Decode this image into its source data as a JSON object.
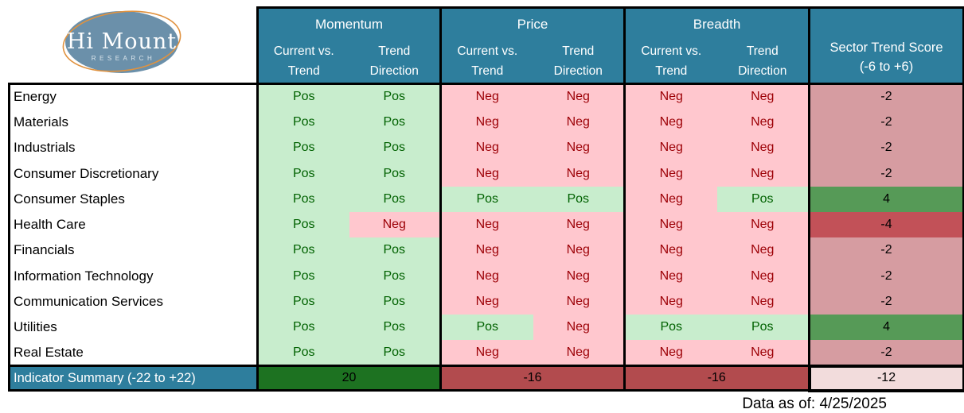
{
  "logo": {
    "title": "Hi Mount",
    "subtitle": "RESEARCH"
  },
  "header": {
    "groups": [
      {
        "label": "Momentum",
        "sub": [
          "Current vs. Trend",
          "Trend Direction"
        ]
      },
      {
        "label": "Price",
        "sub": [
          "Current vs. Trend",
          "Trend Direction"
        ]
      },
      {
        "label": "Breadth",
        "sub": [
          "Current vs. Trend",
          "Trend Direction"
        ]
      }
    ],
    "score": {
      "line1": "Sector Trend Score",
      "line2": "(-6 to +6)"
    }
  },
  "chart_data": {
    "type": "table",
    "title": "Sector Trend Score (-6 to +6)",
    "columns": [
      "Sector",
      "Momentum Current vs. Trend",
      "Momentum Trend Direction",
      "Price Current vs. Trend",
      "Price Trend Direction",
      "Breadth Current vs. Trend",
      "Breadth Trend Direction",
      "Sector Trend Score (-6 to +6)"
    ],
    "rows": [
      {
        "sector": "Energy",
        "momentum": [
          "Pos",
          "Pos"
        ],
        "price": [
          "Neg",
          "Neg"
        ],
        "breadth": [
          "Neg",
          "Neg"
        ],
        "score": -2
      },
      {
        "sector": "Materials",
        "momentum": [
          "Pos",
          "Pos"
        ],
        "price": [
          "Neg",
          "Neg"
        ],
        "breadth": [
          "Neg",
          "Neg"
        ],
        "score": -2
      },
      {
        "sector": "Industrials",
        "momentum": [
          "Pos",
          "Pos"
        ],
        "price": [
          "Neg",
          "Neg"
        ],
        "breadth": [
          "Neg",
          "Neg"
        ],
        "score": -2
      },
      {
        "sector": "Consumer Discretionary",
        "momentum": [
          "Pos",
          "Pos"
        ],
        "price": [
          "Neg",
          "Neg"
        ],
        "breadth": [
          "Neg",
          "Neg"
        ],
        "score": -2
      },
      {
        "sector": "Consumer Staples",
        "momentum": [
          "Pos",
          "Pos"
        ],
        "price": [
          "Pos",
          "Pos"
        ],
        "breadth": [
          "Neg",
          "Pos"
        ],
        "score": 4
      },
      {
        "sector": "Health Care",
        "momentum": [
          "Pos",
          "Neg"
        ],
        "price": [
          "Neg",
          "Neg"
        ],
        "breadth": [
          "Neg",
          "Neg"
        ],
        "score": -4
      },
      {
        "sector": "Financials",
        "momentum": [
          "Pos",
          "Pos"
        ],
        "price": [
          "Neg",
          "Neg"
        ],
        "breadth": [
          "Neg",
          "Neg"
        ],
        "score": -2
      },
      {
        "sector": "Information Technology",
        "momentum": [
          "Pos",
          "Pos"
        ],
        "price": [
          "Neg",
          "Neg"
        ],
        "breadth": [
          "Neg",
          "Neg"
        ],
        "score": -2
      },
      {
        "sector": "Communication Services",
        "momentum": [
          "Pos",
          "Pos"
        ],
        "price": [
          "Neg",
          "Neg"
        ],
        "breadth": [
          "Neg",
          "Neg"
        ],
        "score": -2
      },
      {
        "sector": "Utilities",
        "momentum": [
          "Pos",
          "Pos"
        ],
        "price": [
          "Pos",
          "Neg"
        ],
        "breadth": [
          "Pos",
          "Pos"
        ],
        "score": 4
      },
      {
        "sector": "Real Estate",
        "momentum": [
          "Pos",
          "Pos"
        ],
        "price": [
          "Neg",
          "Neg"
        ],
        "breadth": [
          "Neg",
          "Neg"
        ],
        "score": -2
      }
    ],
    "summary": {
      "label": "Indicator Summary (-22 to +22)",
      "momentum": 20,
      "price": -16,
      "breadth": -16,
      "total": -12
    }
  },
  "footer": {
    "data_as_of": "Data as of: 4/25/2025"
  },
  "colors": {
    "teal": "#2E7E9D",
    "pos_bg": "#C8EDCD",
    "pos_text": "#006100",
    "neg_bg": "#FFC7CE",
    "neg_text": "#9C0006",
    "score_n2": "#D69CA1",
    "score_p4": "#569A57",
    "score_n4": "#C2515",
    "sum_pos": "#1D7221",
    "sum_neg": "#B24B4E",
    "sum_total_bg": "#F2DCDC",
    "logo_fill": "#6B90AA",
    "logo_ring": "#E0923F"
  }
}
